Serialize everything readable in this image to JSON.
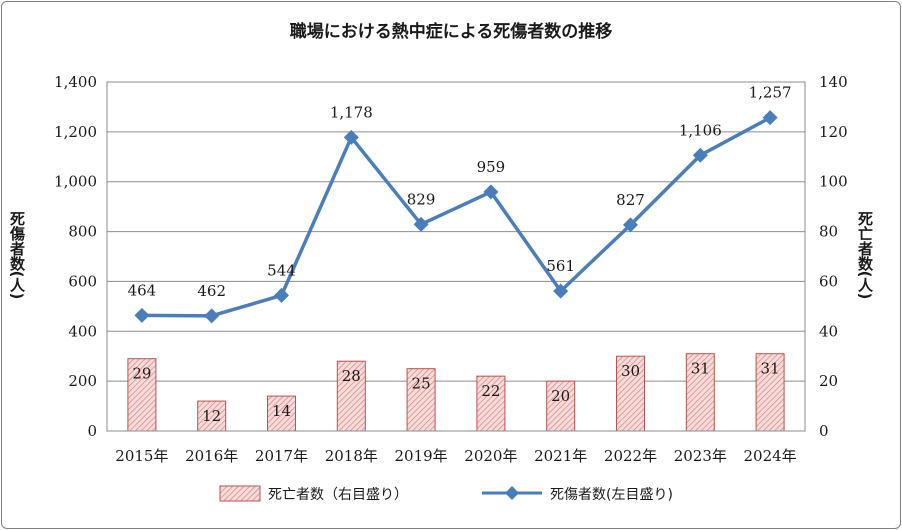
{
  "chart_data": {
    "type": "bar+line",
    "title": "職場における熱中症による死傷者数の推移",
    "categories": [
      "2015年",
      "2016年",
      "2017年",
      "2018年",
      "2019年",
      "2020年",
      "2021年",
      "2022年",
      "2023年",
      "2024年"
    ],
    "series": [
      {
        "name": "死亡者数（右目盛り）",
        "type": "bar",
        "axis": "right",
        "values": [
          29,
          12,
          14,
          28,
          25,
          22,
          20,
          30,
          31,
          31
        ],
        "color": "#c0504d"
      },
      {
        "name": "死傷者数(左目盛り)",
        "type": "line",
        "axis": "left",
        "values": [
          464,
          462,
          544,
          1178,
          829,
          959,
          561,
          827,
          1106,
          1257
        ],
        "value_labels": [
          "464",
          "462",
          "544",
          "1,178",
          "829",
          "959",
          "561",
          "827",
          "1,106",
          "1,257"
        ],
        "color": "#4a7ebb"
      }
    ],
    "y_left": {
      "label": "死傷者数(人)",
      "ylim": [
        0,
        1400
      ],
      "ticks": [
        "0",
        "200",
        "400",
        "600",
        "800",
        "1,000",
        "1,200",
        "1,400"
      ]
    },
    "y_right": {
      "label": "死亡者数(人)",
      "ylim": [
        0,
        140
      ],
      "ticks": [
        "0",
        "20",
        "40",
        "60",
        "80",
        "100",
        "120",
        "140"
      ]
    },
    "grid": true,
    "legend": "bottom"
  }
}
